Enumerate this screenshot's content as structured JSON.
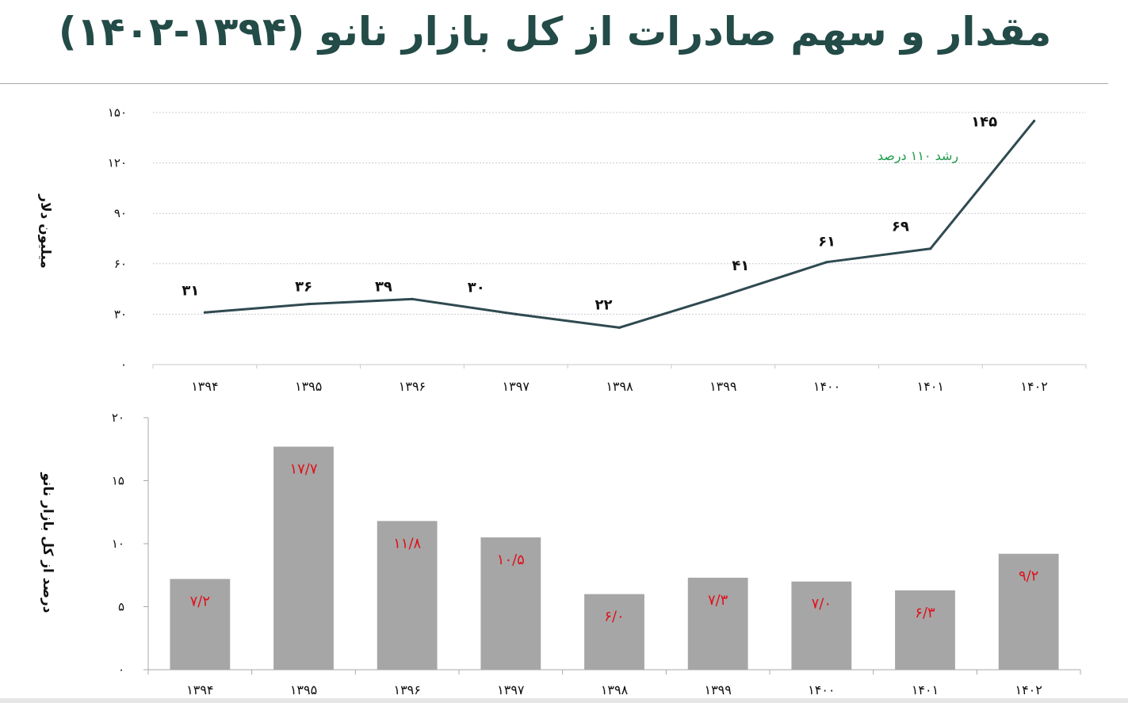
{
  "title": "مقدار و سهم صادرات از کل بازار نانو (۱۳۹۴-۱۴۰۲)",
  "colors": {
    "title": "#234b47",
    "line": "#2f4a50",
    "bar": "#a6a6a6",
    "bar_label": "#e0101a",
    "annotation": "#1e9a4a",
    "grid": "#c8ccd6"
  },
  "chart_data": [
    {
      "type": "line",
      "ylabel": "میلیون دلار",
      "ylim": [
        0,
        150
      ],
      "yticks": [
        0,
        30,
        60,
        90,
        120,
        150
      ],
      "ytick_labels": [
        "۰",
        "۳۰",
        "۶۰",
        "۹۰",
        "۱۲۰",
        "۱۵۰"
      ],
      "grid": true,
      "categories": [
        "۱۳۹۴",
        "۱۳۹۵",
        "۱۳۹۶",
        "۱۳۹۷",
        "۱۳۹۸",
        "۱۳۹۹",
        "۱۴۰۰",
        "۱۴۰۱",
        "۱۴۰۲"
      ],
      "values": [
        31,
        36,
        39,
        30,
        22,
        41,
        61,
        69,
        145
      ],
      "value_labels": [
        "۳۱",
        "۳۶",
        "۳۹",
        "۳۰",
        "۲۲",
        "۴۱",
        "۶۱",
        "۶۹",
        "۱۴۵"
      ],
      "annotation": "رشد ۱۱۰ درصد"
    },
    {
      "type": "bar",
      "ylabel": "درصد از کل بازار نانو",
      "ylim": [
        0,
        20
      ],
      "yticks": [
        0,
        5,
        10,
        15,
        20
      ],
      "ytick_labels": [
        "۰",
        "۵",
        "۱۰",
        "۱۵",
        "۲۰"
      ],
      "grid": false,
      "categories": [
        "۱۳۹۴",
        "۱۳۹۵",
        "۱۳۹۶",
        "۱۳۹۷",
        "۱۳۹۸",
        "۱۳۹۹",
        "۱۴۰۰",
        "۱۴۰۱",
        "۱۴۰۲"
      ],
      "values": [
        7.2,
        17.7,
        11.8,
        10.5,
        6.0,
        7.3,
        7.0,
        6.3,
        9.2
      ],
      "value_labels": [
        "۷/۲",
        "۱۷/۷",
        "۱۱/۸",
        "۱۰/۵",
        "۶/۰",
        "۷/۳",
        "۷/۰",
        "۶/۳",
        "۹/۲"
      ]
    }
  ]
}
